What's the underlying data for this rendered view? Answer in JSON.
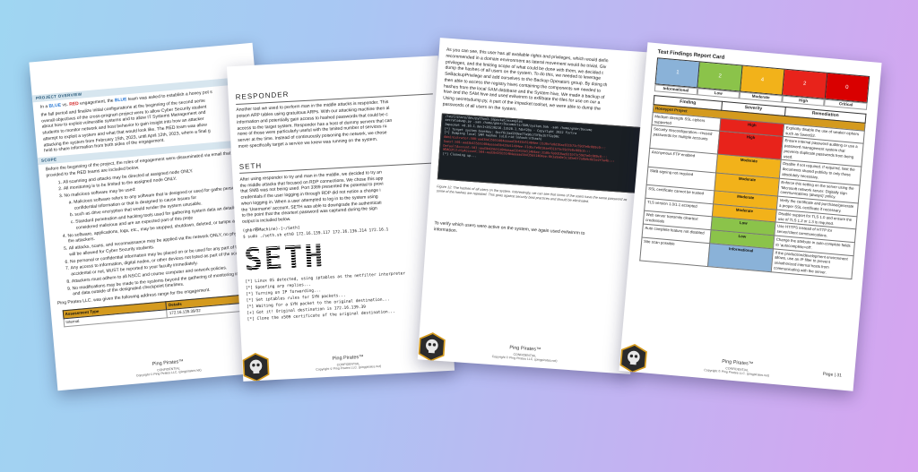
{
  "colors": {
    "accent_gold": "#d49a1e",
    "high": "#e8231b",
    "moderate": "#f2b21a",
    "low": "#8bc34a",
    "informational": "#8ab2d8",
    "critical": "#d90000"
  },
  "footer": {
    "brand": "Ping Pirates™",
    "confidential": "CONFIDENTIAL",
    "copyright": "Copyright © Ping Pirates LLC. (pingpirates.net)"
  },
  "page1": {
    "section_overview": "PROJECT OVERVIEW",
    "overview_p1_a": "In a ",
    "blue": "BLUE",
    "overview_p1_b": " vs. ",
    "red": "RED",
    "overview_p1_c": " engagement, the ",
    "overview_p1_d": " team was asked to establish a honey pot s",
    "overview_lines": [
      "the fall period and finalize initial configurations at the beginning of the second seme",
      "overall objectives of the cross-program project were to allow Cyber Security student",
      "about how to exploit vulnerable systems and to allow IT Systems Management and",
      "students to monitor network and host behavior to gain insight into how an attacker",
      "attempt to exploit a system and what that would look like. The RED team was allow",
      "attacking the system from February 15th, 2023, until April 12th, 2023, where a final g",
      "held to share information from both sides of the engagement."
    ],
    "section_scope": "SCOPE",
    "scope_intro": "Before the beginning of the project, the rules of engagement were disseminated via email that were provided to the RED teams are included below.",
    "rules": [
      "All scanning and attacks may be directed at assigned node ONLY.",
      "All monitoring is to be limited to the assigned node ONLY.",
      "No malicious software may be used:",
      "No software, applications, logs, etc., may be stopped, shutdown, deleted, or tampe any form by the attackers.",
      "All attacks, scans, and reconnaissance may be applied via the network ONLY, no phy or devices will be allowed for Cyber Security students.",
      "No personal or confidential information may be placed on or be used for any part of the",
      "Any access to information, digital nodes, or other devices not listed as part of the scope, whether accidental or not, MUST be reported to your faculty immediately.",
      "Attackers must adhere to all NSCC and course computer and network policies.",
      "No modifications may be made to the systems beyond the gathering of monitoring information and data outside of the designated checkpoint timelines."
    ],
    "sub_rules": [
      "Malicious software refers to any software that is designed or used for gathe personal or confidential information or that is designed to cause issues for",
      "such as drive encryption that would render the system unusable.",
      "Standard penetration and hacking tools used for gathering system data an details are not considered malicious and are an expected part of this proje"
    ],
    "ip_intro": "Ping Pirates LLC. was given the following address range for the engagement.",
    "table_headers": [
      "Assessment Type",
      "Details"
    ],
    "table_rows": [
      [
        "Internal",
        "172.16.135.39/32"
      ]
    ]
  },
  "page2": {
    "title_responder": "RESPONDER",
    "responder_lines": [
      "Another tool we used to perform man in the middle attacks is responder. This",
      "poison ARP tables using gratuitous ARPs. With our attacking machine then al",
      "information and potentially gain access to hashed passwords that could be c",
      "access to the target system. Responder has a host of dummy servers that can",
      "none of those were particularly useful with the limited number of services ru",
      "server at the time. Instead of continuously poisoning the network, we chose",
      "more specifically target a service we knew was running on the system."
    ],
    "title_seth": "SETH",
    "seth_lines": [
      "After using responder to try and man in the middle, we decided to try an",
      "the middle attacks that focused on RDP connections. We chose this app",
      "that SMB was not being used. Port 3389 presented the potential to provi",
      "credentials if the user logging in through RDP did not notice a change i",
      "when logging in. When a user attempted to log in to the system using",
      "the 'Username' account, SETH was able to downgrade the authenticati",
      "to the point that the cleartext password was captured during the sign",
      "output is included below."
    ],
    "prompt_line": "(ghbr㉿Machine)-[~/Seth]",
    "cmd_line": "$ sudo ./seth.sh eth0 172.16.139.117 172.16.136.214 172.16.1",
    "seth_art": "SETH",
    "side_notes": [
      "by Adri",
      "seth@",
      "SySS Gm",
      "https:"
    ],
    "output_lines": [
      "[*] Linux OS detected, using iptables as the netfilter interpreter",
      "[*] Spoofing arp replies...",
      "[*] Turning on IP forwarding...",
      "[*] Set iptables rules for SYN packets...",
      "[*] Waiting for a SYN packet to the original destination...",
      "[+] Got it! Original destination is 172.16.139.39",
      "[*] Clone the x509 certificate of the original destination..."
    ]
  },
  "page3": {
    "intro_lines": [
      "As you can see, this user has all available rights and privileges, which would defin",
      "recommended in a domain environment as lateral movement would be trivial. Giv",
      "privileges, and the limiting scope of what could be done with them, we decided t",
      "dump the hashes of all users on the system. To do this, we needed to leverage",
      "SeBackupPrivilege and add ourselves to the Backup Operators group. By doing th",
      "then able to access the registry hives containing the components we needed to",
      "hashes from the local SAM database and the System hive. We made a backup of",
      "hive and the SAM hive and used evilwinrm to exfiltrate the files for use on our a",
      "Using secretsdump.py, a part of the impacket toolset, we were able to dump the",
      "passwords of all users on the system."
    ],
    "terminal_lines": [
      "/test/share/dev/python3-impacket/examples",
      "secretsdump.py  -sam /home/ghbr/Documents/SAM/system.bak -sam /home/ghbr/Docume",
      "Impacket v0.10.1.dev1+20230216.13520.1.fdbf28a - Copyright 2022 Fortra",
      "[*] Target system bootKey: 0xcf6c2ad2b9ee77a96c73f0a1b7f2e90c",
      "[*] Dumping local SAM hashes (uid:rid:lmhash:nthash)",
      "Administrator:500:aad3b435b51404eeaad3b435b51404ee:31d6cfe0d16ae931b73c59d7e0c089c0:::",
      "Guest:501:aad3b435b51404eeaad3b435b51404ee:31d6cfe0d16ae931b73c59d7e0c089c0:::",
      "DefaultAccount:503:aad3b435b51404eeaad3b435b51404ee:31d6cfe0d16ae931b73c59d7e0c089c0:::",
      "WDAGUtilityAccount:504:aad3b435b51404eeaad3b435b51404ee:8b3a9a0e3c1d5e6f7a8b9c0d1e2f3a4b:::",
      "[*] Cleaning up..."
    ],
    "caption": "Figure 12: The hashes of all users on the system. Interestingly, we can see that some of the users have the same password as some of the hashes are repeated. This goes against security best practices and should be eliminated.",
    "after_lines": [
      "To verify which users were active on the system, we again used evilwinrm to",
      "information."
    ]
  },
  "page4": {
    "card_title": "Test Findings Report Card",
    "scale_counts": [
      "1",
      "2",
      "4",
      "2",
      "0"
    ],
    "scale_labels": [
      "Informational",
      "Low",
      "Moderate",
      "High",
      "Critical"
    ],
    "headers": [
      "Finding",
      "Severity",
      "Remediation"
    ],
    "project_label": "Honeypot Project",
    "findings": [
      {
        "finding": "Medium strength SSL ciphers supported",
        "severity": "High",
        "remediation": "Explicitly disable the use of weaker ciphers such as Sweet32."
      },
      {
        "finding": "Security misconfiguration—reused passwords for multiple accounts",
        "severity": "High",
        "remediation": "Ensure internal password auditing or use a password management system that prevents duplicate passwords from being used."
      },
      {
        "finding": "Anonymous FTP enabled",
        "severity": "Moderate",
        "remediation": "Disable if not required. If required, limit the documents shared publicly to only those absolutely necessary."
      },
      {
        "finding": "SMB signing not required",
        "severity": "Moderate",
        "remediation": "Enforce this setting on the server using the 'Microsoft network server: Digitally sign communications (always)' policy."
      },
      {
        "finding": "SSL certificate cannot be trusted",
        "severity": "Moderate",
        "remediation": "Verify the certificate and purchase/generate a proper SSL certificate if necessary."
      },
      {
        "finding": "TLS version 1.0/1.1 accepted",
        "severity": "Moderate",
        "remediation": "Disable support for TLS 1.0 and ensure the use of TLS 1.2 or 1.3 is required."
      },
      {
        "finding": "Web server transmits cleartext credentials",
        "severity": "Low",
        "remediation": "Use HTTPS instead of HTTP for server/client communications."
      },
      {
        "finding": "Auto complete feature not disabled",
        "severity": "Low",
        "remediation": "Change the attribute in auto-complete fields to 'autocomplete=off'."
      },
      {
        "finding": "Site scan possible",
        "severity": "Informational",
        "remediation": "If the production/development environment allows, use an IP filter to prevent unauthorized internal hosts from communicating with the server."
      }
    ],
    "page_label": "Page | 31"
  }
}
